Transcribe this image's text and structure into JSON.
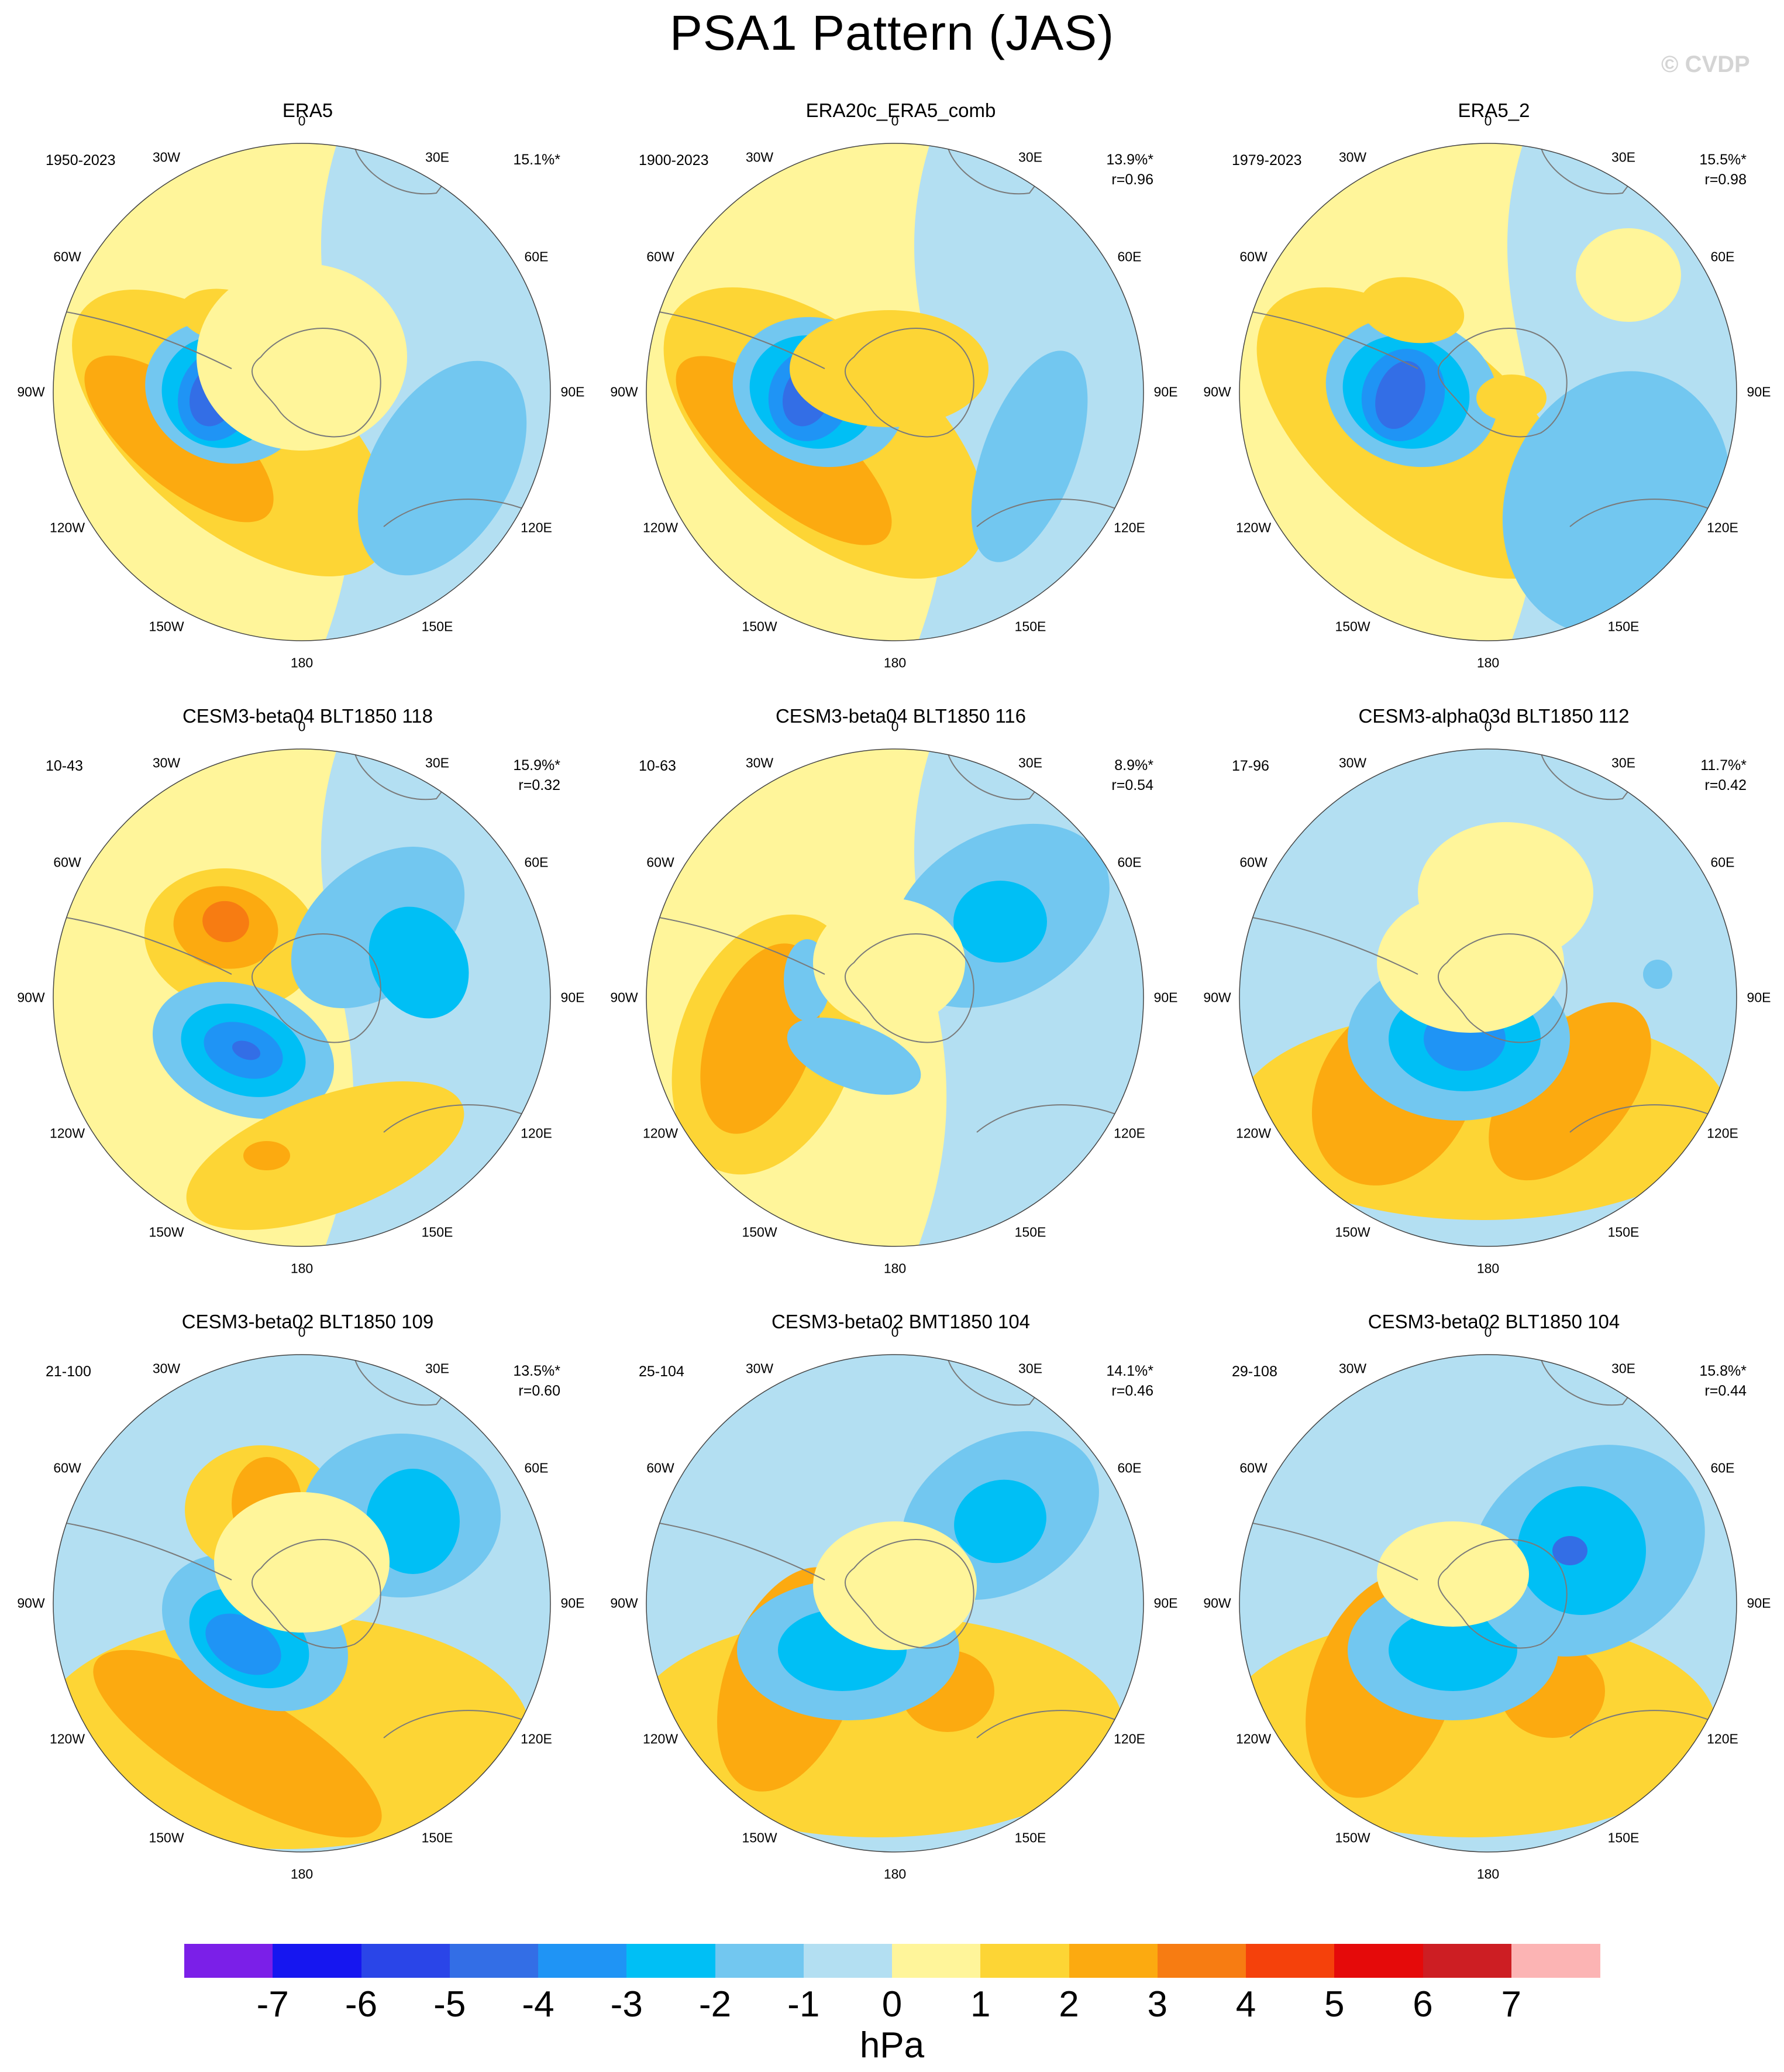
{
  "title": "PSA1 Pattern (JAS)",
  "credit": "© CVDP",
  "longitude_labels": [
    "0",
    "30E",
    "60E",
    "90E",
    "120E",
    "150E",
    "180",
    "150W",
    "120W",
    "90W",
    "60W",
    "30W"
  ],
  "panels": [
    {
      "title": "ERA5",
      "period": "1950-2023",
      "pct": "15.1%*",
      "r": ""
    },
    {
      "title": "ERA20c_ERA5_comb",
      "period": "1900-2023",
      "pct": "13.9%*",
      "r": "r=0.96"
    },
    {
      "title": "ERA5_2",
      "period": "1979-2023",
      "pct": "15.5%*",
      "r": "r=0.98"
    },
    {
      "title": "CESM3-beta04 BLT1850 118",
      "period": "10-43",
      "pct": "15.9%*",
      "r": "r=0.32"
    },
    {
      "title": "CESM3-beta04 BLT1850 116",
      "period": "10-63",
      "pct": "8.9%*",
      "r": "r=0.54"
    },
    {
      "title": "CESM3-alpha03d BLT1850 112",
      "period": "17-96",
      "pct": "11.7%*",
      "r": "r=0.42"
    },
    {
      "title": "CESM3-beta02 BLT1850 109",
      "period": "21-100",
      "pct": "13.5%*",
      "r": "r=0.60"
    },
    {
      "title": "CESM3-beta02 BMT1850 104",
      "period": "25-104",
      "pct": "14.1%*",
      "r": "r=0.46"
    },
    {
      "title": "CESM3-beta02 BLT1850 104",
      "period": "29-108",
      "pct": "15.8%*",
      "r": "r=0.44"
    }
  ],
  "colorbar": {
    "units": "hPa",
    "labels": [
      "-7",
      "-6",
      "-5",
      "-4",
      "-3",
      "-2",
      "-1",
      "0",
      "1",
      "2",
      "3",
      "4",
      "5",
      "6",
      "7"
    ],
    "colors": [
      "#7b1fe8",
      "#1616f0",
      "#2a45e8",
      "#336ee6",
      "#1f94f5",
      "#00bff5",
      "#72c7f0",
      "#b3dff2",
      "#fff59a",
      "#fdd535",
      "#fcaa10",
      "#f77c12",
      "#f5410b",
      "#e50a0a",
      "#cd1e23",
      "#fcb4b4"
    ]
  }
}
